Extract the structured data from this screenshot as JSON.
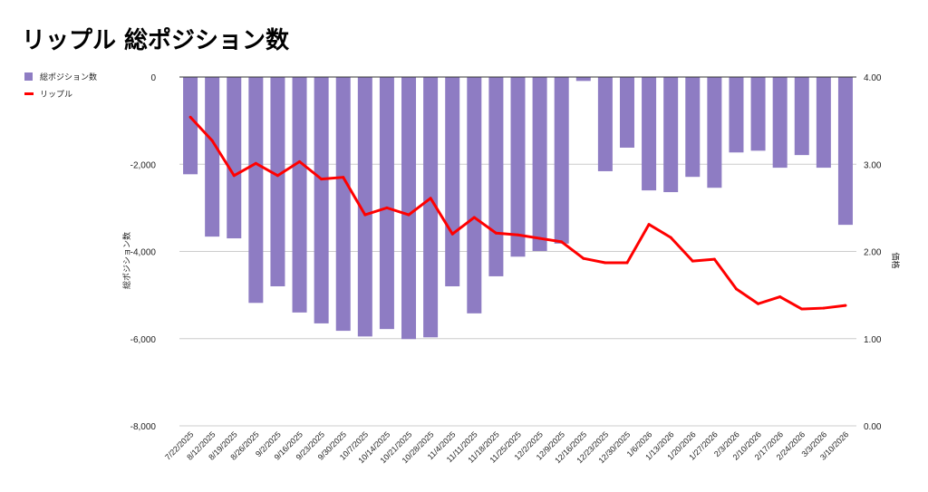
{
  "chart_data": {
    "type": "bar+line",
    "title": "リップル 総ポジション数",
    "categories": [
      "7/22/2025",
      "8/12/2025",
      "8/19/2025",
      "8/26/2025",
      "9/2/2025",
      "9/16/2025",
      "9/23/2025",
      "9/30/2025",
      "10/7/2025",
      "10/14/2025",
      "10/21/2025",
      "10/28/2025",
      "11/4/2025",
      "11/11/2025",
      "11/18/2025",
      "11/25/2025",
      "12/2/2025",
      "12/9/2025",
      "12/16/2025",
      "12/23/2025",
      "12/30/2025",
      "1/6/2026",
      "1/13/2026",
      "1/20/2026",
      "1/27/2026",
      "2/3/2026",
      "2/10/2026",
      "2/17/2026",
      "2/24/2026",
      "3/3/2026",
      "3/10/2026"
    ],
    "series": [
      {
        "name": "総ポジション数",
        "type": "bar",
        "axis": "left",
        "color": "#8e7cc3",
        "values": [
          -2230,
          -3660,
          -3700,
          -5180,
          -4800,
          -5400,
          -5650,
          -5820,
          -5950,
          -5780,
          -6010,
          -5970,
          -4800,
          -5420,
          -4570,
          -4120,
          -3990,
          -3820,
          -90,
          -2160,
          -1620,
          -2600,
          -2640,
          -2290,
          -2540,
          -1730,
          -1690,
          -2080,
          -1790,
          -2080,
          -3390
        ]
      },
      {
        "name": "リップル",
        "type": "line",
        "axis": "right",
        "color": "#ff0000",
        "values": [
          3.54,
          3.27,
          2.87,
          3.01,
          2.87,
          3.03,
          2.83,
          2.85,
          2.42,
          2.5,
          2.42,
          2.61,
          2.2,
          2.39,
          2.21,
          2.19,
          2.15,
          2.11,
          1.92,
          1.87,
          1.87,
          2.31,
          2.16,
          1.89,
          1.91,
          1.57,
          1.4,
          1.48,
          1.34,
          1.35,
          1.38
        ]
      }
    ],
    "ylabel_left": "総ポジション数",
    "ylabel_right": "価格",
    "ylim_left": [
      -8000,
      0
    ],
    "ylim_right": [
      0,
      4
    ],
    "yticks_left": [
      "0",
      "-2,000",
      "-4,000",
      "-6,000",
      "-8,000"
    ],
    "yticks_right": [
      "4.00",
      "3.00",
      "2.00",
      "1.00",
      "0.00"
    ],
    "legend": [
      "総ポジション数",
      "リップル"
    ],
    "legend_position": "left",
    "grid": true
  }
}
